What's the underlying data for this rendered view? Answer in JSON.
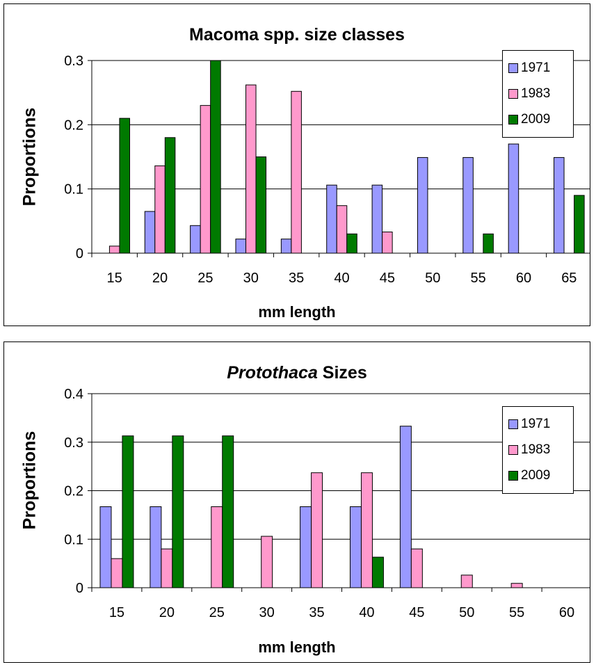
{
  "charts": [
    {
      "id": "macoma",
      "title_plain": "Macoma spp. size classes",
      "xlabel": "mm length",
      "ylabel": "Proportions",
      "legend": [
        "1971",
        "1983",
        "2009"
      ]
    },
    {
      "id": "protothaca",
      "title_italic": "Protothaca",
      "title_rest": " Sizes",
      "xlabel": "mm length",
      "ylabel": "Proportions",
      "legend": [
        "1971",
        "1983",
        "2009"
      ]
    }
  ],
  "colors": {
    "s1971": "#9999FF",
    "s1983": "#FF99CC",
    "s2009": "#007A00",
    "grid": "#000000"
  },
  "chart_data": [
    {
      "type": "bar",
      "title": "Macoma spp. size classes",
      "xlabel": "mm length",
      "ylabel": "Proportions",
      "categories": [
        "15",
        "20",
        "25",
        "30",
        "35",
        "40",
        "45",
        "50",
        "55",
        "60",
        "65"
      ],
      "ylim": [
        0,
        0.3
      ],
      "yticks": [
        "0",
        "0.1",
        "0.2",
        "0.3"
      ],
      "grid": true,
      "legend_position": "top-right",
      "series": [
        {
          "name": "1971",
          "values": [
            0,
            0.065,
            0.043,
            0.022,
            0.022,
            0.106,
            0.106,
            0.149,
            0.149,
            0.17,
            0.149
          ]
        },
        {
          "name": "1983",
          "values": [
            0.011,
            0.136,
            0.23,
            0.262,
            0.252,
            0.074,
            0.033,
            0,
            0,
            0,
            0
          ]
        },
        {
          "name": "2009",
          "values": [
            0.21,
            0.18,
            0.3,
            0.15,
            0,
            0.03,
            0,
            0,
            0.03,
            0,
            0.09
          ]
        }
      ]
    },
    {
      "type": "bar",
      "title": "Protothaca Sizes",
      "xlabel": "mm length",
      "ylabel": "Proportions",
      "categories": [
        "15",
        "20",
        "25",
        "30",
        "35",
        "40",
        "45",
        "50",
        "55",
        "60"
      ],
      "ylim": [
        0,
        0.4
      ],
      "yticks": [
        "0",
        "0.1",
        "0.2",
        "0.3",
        "0.4"
      ],
      "grid": true,
      "legend_position": "top-right",
      "series": [
        {
          "name": "1971",
          "values": [
            0.167,
            0.167,
            0,
            0,
            0.167,
            0.167,
            0.333,
            0,
            0,
            0
          ]
        },
        {
          "name": "1983",
          "values": [
            0.06,
            0.08,
            0.167,
            0.106,
            0.237,
            0.237,
            0.08,
            0.026,
            0.009,
            0
          ]
        },
        {
          "name": "2009",
          "values": [
            0.313,
            0.313,
            0.313,
            0,
            0,
            0.063,
            0,
            0,
            0,
            0
          ]
        }
      ]
    }
  ]
}
